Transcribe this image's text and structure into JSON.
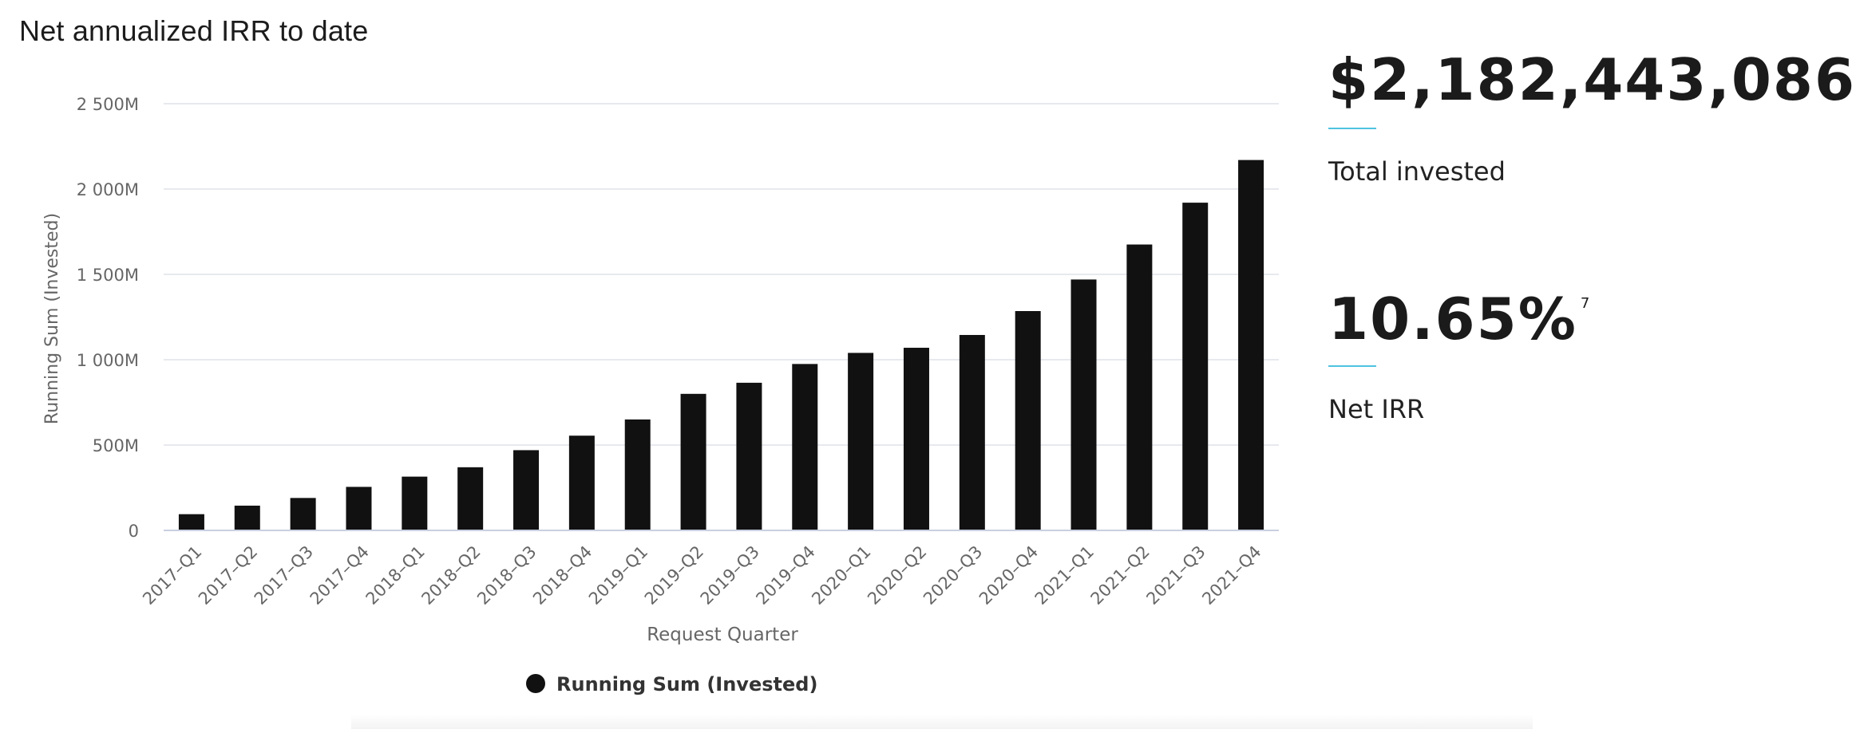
{
  "header": {
    "title": "Net annualized IRR to date"
  },
  "stats": {
    "total_invested": {
      "value": "$2,182,443,086",
      "label": "Total invested"
    },
    "net_irr": {
      "value": "10.65%",
      "footnote": "7",
      "label": "Net IRR"
    },
    "accent_color": "#4fc3e0"
  },
  "chart_data": {
    "type": "bar",
    "title": "",
    "xlabel": "Request Quarter",
    "ylabel": "Running Sum (Invested)",
    "ylim": [
      0,
      2500
    ],
    "y_unit": "M",
    "yticks": [
      0,
      500,
      1000,
      1500,
      2000,
      2500
    ],
    "ytick_labels": [
      "0",
      "500M",
      "1 000M",
      "1 500M",
      "2 000M",
      "2 500M"
    ],
    "grid": true,
    "legend_position": "bottom-center",
    "categories": [
      "2017–Q1",
      "2017–Q2",
      "2017–Q3",
      "2017–Q4",
      "2018–Q1",
      "2018–Q2",
      "2018–Q3",
      "2018–Q4",
      "2019–Q1",
      "2019–Q2",
      "2019–Q3",
      "2019–Q4",
      "2020–Q1",
      "2020–Q2",
      "2020–Q3",
      "2020–Q4",
      "2021–Q1",
      "2021–Q2",
      "2021–Q3",
      "2021–Q4"
    ],
    "series": [
      {
        "name": "Running Sum (Invested)",
        "color": "#111111",
        "values": [
          95,
          145,
          190,
          255,
          315,
          370,
          470,
          555,
          650,
          800,
          865,
          975,
          1040,
          1070,
          1145,
          1285,
          1470,
          1675,
          1920,
          2170
        ]
      }
    ]
  }
}
